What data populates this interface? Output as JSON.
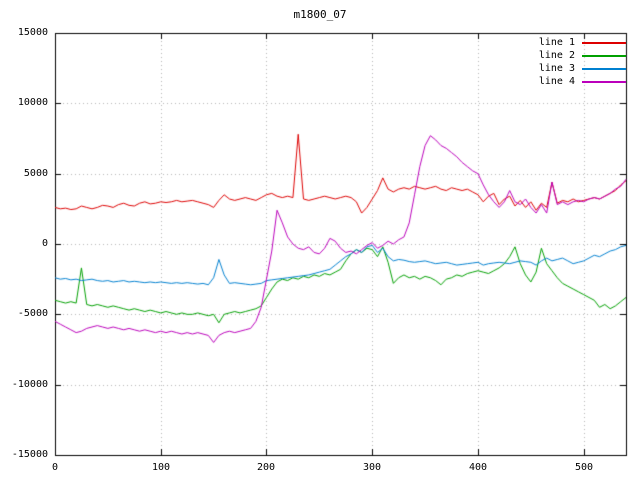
{
  "chart_data": {
    "type": "line",
    "title": "m1800_07",
    "xlabel": "",
    "ylabel": "",
    "xlim": [
      0,
      540
    ],
    "ylim": [
      -15000,
      15000
    ],
    "xticks": [
      0,
      100,
      200,
      300,
      400,
      500
    ],
    "yticks": [
      -15000,
      -10000,
      -5000,
      0,
      5000,
      10000,
      15000
    ],
    "grid": true,
    "grid_style": "dotted",
    "legend_position": "top-right",
    "x_start": 0,
    "x_step": 5,
    "colors": {
      "background": "#ffffff",
      "border": "#000000",
      "grid": "#b4b4b4",
      "text": "#000000"
    },
    "series": [
      {
        "name": "line 1",
        "color": "#dd0000",
        "values": [
          2600,
          2500,
          2550,
          2450,
          2500,
          2700,
          2600,
          2500,
          2600,
          2750,
          2700,
          2600,
          2800,
          2900,
          2750,
          2700,
          2900,
          3000,
          2850,
          2900,
          3000,
          2950,
          3000,
          3100,
          3000,
          3050,
          3100,
          3000,
          2900,
          2800,
          2600,
          3100,
          3500,
          3200,
          3100,
          3200,
          3300,
          3200,
          3100,
          3300,
          3500,
          3600,
          3400,
          3300,
          3400,
          3300,
          7800,
          3200,
          3100,
          3200,
          3300,
          3400,
          3300,
          3200,
          3300,
          3400,
          3300,
          3000,
          2200,
          2600,
          3200,
          3800,
          4700,
          3900,
          3700,
          3900,
          4000,
          3900,
          4100,
          4000,
          3900,
          4000,
          4100,
          3900,
          3800,
          4000,
          3900,
          3800,
          3900,
          3700,
          3500,
          3000,
          3400,
          3600,
          2800,
          3200,
          3400,
          2700,
          3100,
          2600,
          3000,
          2400,
          2900,
          2600,
          4400,
          2900,
          3100,
          3000,
          3200,
          3000,
          3100,
          3200,
          3300,
          3200,
          3400,
          3600,
          3800,
          4200,
          4500
        ]
      },
      {
        "name": "line 2",
        "color": "#00a000",
        "values": [
          -4000,
          -4100,
          -4200,
          -4100,
          -4200,
          -1700,
          -4300,
          -4400,
          -4300,
          -4400,
          -4500,
          -4400,
          -4500,
          -4600,
          -4700,
          -4600,
          -4700,
          -4800,
          -4700,
          -4800,
          -4900,
          -4800,
          -4900,
          -5000,
          -4900,
          -5000,
          -5000,
          -4900,
          -5000,
          -5100,
          -5000,
          -5600,
          -5000,
          -4900,
          -4800,
          -4900,
          -4800,
          -4700,
          -4600,
          -4400,
          -3800,
          -3200,
          -2700,
          -2500,
          -2600,
          -2400,
          -2500,
          -2300,
          -2400,
          -2200,
          -2300,
          -2100,
          -2200,
          -2000,
          -1800,
          -1200,
          -700,
          -400,
          -600,
          -300,
          -400,
          -900,
          -200,
          -1300,
          -2800,
          -2400,
          -2200,
          -2400,
          -2300,
          -2500,
          -2300,
          -2400,
          -2600,
          -2900,
          -2500,
          -2400,
          -2200,
          -2300,
          -2100,
          -2000,
          -1900,
          -2000,
          -2100,
          -1900,
          -1700,
          -1400,
          -900,
          -200,
          -1400,
          -2200,
          -2700,
          -2000,
          -300,
          -1400,
          -1900,
          -2400,
          -2800,
          -3000,
          -3200,
          -3400,
          -3600,
          -3800,
          -4000,
          -4500,
          -4300,
          -4600,
          -4400,
          -4100,
          -3800
        ]
      },
      {
        "name": "line 3",
        "color": "#0080d0",
        "values": [
          -2400,
          -2500,
          -2450,
          -2550,
          -2500,
          -2600,
          -2550,
          -2500,
          -2600,
          -2650,
          -2600,
          -2700,
          -2650,
          -2600,
          -2700,
          -2650,
          -2700,
          -2750,
          -2700,
          -2750,
          -2700,
          -2750,
          -2800,
          -2750,
          -2800,
          -2750,
          -2800,
          -2850,
          -2800,
          -2900,
          -2400,
          -1100,
          -2200,
          -2800,
          -2750,
          -2800,
          -2850,
          -2900,
          -2850,
          -2800,
          -2600,
          -2550,
          -2500,
          -2450,
          -2400,
          -2350,
          -2300,
          -2250,
          -2200,
          -2100,
          -2000,
          -1900,
          -1800,
          -1500,
          -1200,
          -900,
          -700,
          -400,
          -600,
          -200,
          -100,
          -600,
          -300,
          -900,
          -1200,
          -1100,
          -1150,
          -1250,
          -1300,
          -1250,
          -1200,
          -1300,
          -1400,
          -1350,
          -1300,
          -1400,
          -1500,
          -1450,
          -1400,
          -1350,
          -1300,
          -1500,
          -1400,
          -1350,
          -1300,
          -1350,
          -1400,
          -1300,
          -1200,
          -1250,
          -1300,
          -1500,
          -1200,
          -1000,
          -1200,
          -1100,
          -1000,
          -1200,
          -1400,
          -1300,
          -1200,
          -1000,
          -800,
          -900,
          -700,
          -500,
          -400,
          -200,
          -100
        ]
      },
      {
        "name": "line 4",
        "color": "#bb00bb",
        "values": [
          -5500,
          -5700,
          -5900,
          -6100,
          -6300,
          -6200,
          -6000,
          -5900,
          -5800,
          -5900,
          -6000,
          -5900,
          -6000,
          -6100,
          -6000,
          -6100,
          -6200,
          -6100,
          -6200,
          -6300,
          -6200,
          -6300,
          -6200,
          -6300,
          -6400,
          -6300,
          -6400,
          -6300,
          -6400,
          -6500,
          -7000,
          -6500,
          -6300,
          -6200,
          -6300,
          -6200,
          -6100,
          -6000,
          -5500,
          -4500,
          -2500,
          -500,
          2400,
          1500,
          500,
          0,
          -300,
          -400,
          -200,
          -600,
          -700,
          -300,
          400,
          200,
          -300,
          -600,
          -500,
          -700,
          -400,
          -100,
          100,
          -300,
          -100,
          200,
          0,
          300,
          500,
          1500,
          3500,
          5500,
          7000,
          7700,
          7400,
          7000,
          6800,
          6500,
          6200,
          5800,
          5500,
          5200,
          5000,
          4200,
          3500,
          3000,
          2600,
          3000,
          3800,
          3000,
          2800,
          3200,
          2600,
          2200,
          2800,
          2200,
          4400,
          2800,
          3000,
          2800,
          3000,
          3100,
          3000,
          3200,
          3300,
          3200,
          3400,
          3600,
          3900,
          4100,
          4600
        ]
      }
    ]
  }
}
